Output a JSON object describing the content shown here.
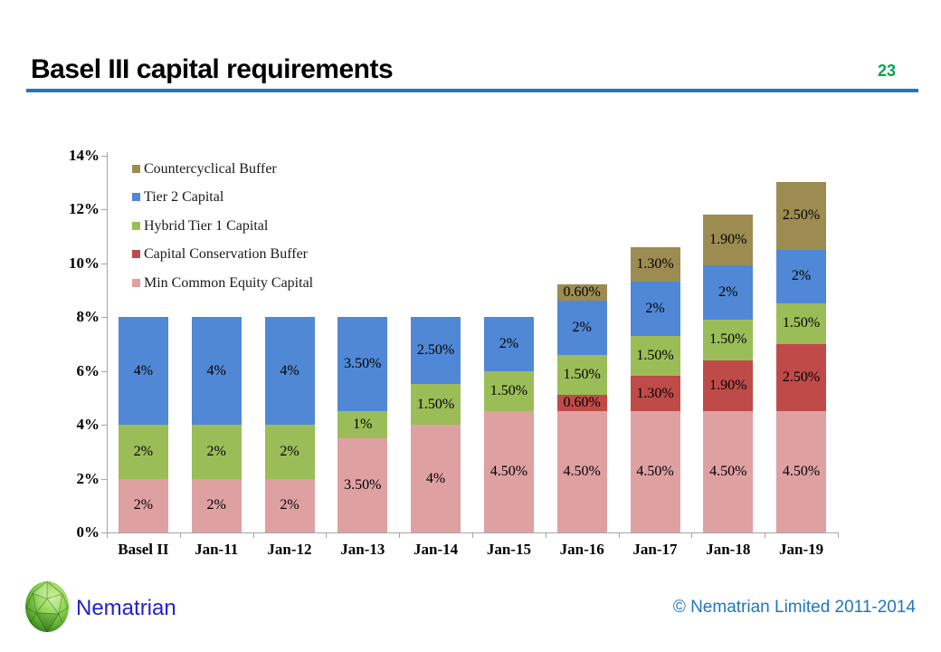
{
  "header": {
    "title": "Basel III capital requirements",
    "page_number": "23",
    "page_number_color": "#00A64F",
    "rule_color": "#2175C8"
  },
  "chart_data": {
    "type": "bar",
    "stacked": true,
    "title": "",
    "categories": [
      "Basel II",
      "Jan-11",
      "Jan-12",
      "Jan-13",
      "Jan-14",
      "Jan-15",
      "Jan-16",
      "Jan-17",
      "Jan-18",
      "Jan-19"
    ],
    "series": [
      {
        "name": "Min Common Equity Capital",
        "color": "#DFA0A2",
        "values": [
          2,
          2,
          2,
          3.5,
          4,
          4.5,
          4.5,
          4.5,
          4.5,
          4.5
        ],
        "labels": [
          "2%",
          "2%",
          "2%",
          "3.50%",
          "4%",
          "4.50%",
          "4.50%",
          "4.50%",
          "4.50%",
          "4.50%"
        ]
      },
      {
        "name": "Capital Conservation Buffer",
        "color": "#BE4B48",
        "values": [
          0,
          0,
          0,
          0,
          0,
          0,
          0.6,
          1.3,
          1.9,
          2.5
        ],
        "labels": [
          "",
          "",
          "",
          "",
          "",
          "",
          "0.60%",
          "1.30%",
          "1.90%",
          "2.50%"
        ]
      },
      {
        "name": "Hybrid Tier 1 Capital",
        "color": "#9BBD58",
        "values": [
          2,
          2,
          2,
          1,
          1.5,
          1.5,
          1.5,
          1.5,
          1.5,
          1.5
        ],
        "labels": [
          "2%",
          "2%",
          "2%",
          "1%",
          "1.50%",
          "1.50%",
          "1.50%",
          "1.50%",
          "1.50%",
          "1.50%"
        ]
      },
      {
        "name": "Tier 2 Capital",
        "color": "#5088D5",
        "values": [
          4,
          4,
          4,
          3.5,
          2.5,
          2,
          2,
          2,
          2,
          2
        ],
        "labels": [
          "4%",
          "4%",
          "4%",
          "3.50%",
          "2.50%",
          "2%",
          "2%",
          "2%",
          "2%",
          "2%"
        ]
      },
      {
        "name": "Countercyclical Buffer",
        "color": "#9C8C52",
        "values": [
          0,
          0,
          0,
          0,
          0,
          0,
          0.6,
          1.3,
          1.9,
          2.5
        ],
        "labels": [
          "",
          "",
          "",
          "",
          "",
          "",
          "0.60%",
          "1.30%",
          "1.90%",
          "2.50%"
        ]
      }
    ],
    "legend_order_top_to_bottom": [
      "Countercyclical Buffer",
      "Tier 2 Capital",
      "Hybrid Tier 1 Capital",
      "Capital Conservation Buffer",
      "Min Common Equity Capital"
    ],
    "legend_position": "upper-left-inside",
    "y_ticks": [
      "0%",
      "2%",
      "4%",
      "6%",
      "8%",
      "10%",
      "12%",
      "14%"
    ],
    "ylim": [
      0,
      14
    ],
    "grid": false,
    "axis_color": "#A6A6A6"
  },
  "footer": {
    "brand": "Nematrian",
    "brand_color": "#2222CC",
    "copyright": "© Nematrian Limited 2011-2014",
    "copyright_color": "#1F75C4",
    "logo": "nematrian-polyhedron-logo"
  }
}
